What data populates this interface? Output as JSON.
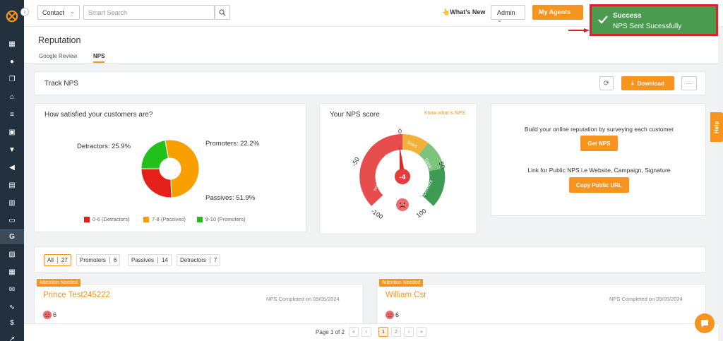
{
  "topbar": {
    "contact_select": "Contact",
    "search_placeholder": "Smart Search",
    "whats_new": "What's New",
    "admin": "Admin",
    "my_agents": "My Agents"
  },
  "toast": {
    "title": "Success",
    "message": "NPS Sent Sucessfully"
  },
  "header": {
    "title": "Reputation",
    "tabs": [
      {
        "label": "Google Review"
      },
      {
        "label": "NPS"
      }
    ]
  },
  "track": {
    "title": "Track NPS",
    "download": "Download"
  },
  "satisfaction": {
    "title": "How satisfied your customers are?",
    "labels": {
      "detractors": "Detractors: 25.9%",
      "promoters": "Promoters: 22.2%",
      "passives": "Passives: 51.9%"
    },
    "legend": [
      "0-6 (Detractors)",
      "7-8 (Passives)",
      "9-10 (Promoters)"
    ]
  },
  "chart_data": {
    "type": "pie",
    "categories": [
      "Detractors",
      "Passives",
      "Promoters"
    ],
    "values": [
      25.9,
      51.9,
      22.2
    ],
    "colors": [
      "#e5201b",
      "#f7a000",
      "#22c01a"
    ]
  },
  "nps_score": {
    "title": "Your NPS score",
    "link": "Know what is NPS",
    "score": "-4",
    "score_value": -4,
    "ticks": [
      "0",
      "-50",
      "50",
      "-100",
      "100"
    ],
    "segments": [
      "Needs Improvement",
      "Good",
      "Great",
      "Excellent"
    ]
  },
  "reputation": {
    "build_text": "Build your online reputation by surveying each customer",
    "get_nps": "Get NPS",
    "link_text": "Link for Public NPS i.e Website, Campaign, Signature",
    "copy_url": "Copy Public URL"
  },
  "filters": [
    {
      "label": "All",
      "count": "27"
    },
    {
      "label": "Promoters",
      "count": "6"
    },
    {
      "label": "Passives",
      "count": "14"
    },
    {
      "label": "Detractors",
      "count": "7"
    }
  ],
  "responses": [
    {
      "badge": "Attention Needed",
      "name": "Prince Test245222",
      "date": "NPS Completed on 09/05/2024",
      "score": "6"
    },
    {
      "badge": "Attention Needed",
      "name": "William Csr",
      "date": "NPS Completed on 09/05/2024",
      "score": "6"
    }
  ],
  "pagination": {
    "label": "Page 1 of 2",
    "first": "«",
    "prev": "‹",
    "pages": [
      "1",
      "2"
    ],
    "next": "›",
    "last": "»"
  },
  "help": "Help"
}
